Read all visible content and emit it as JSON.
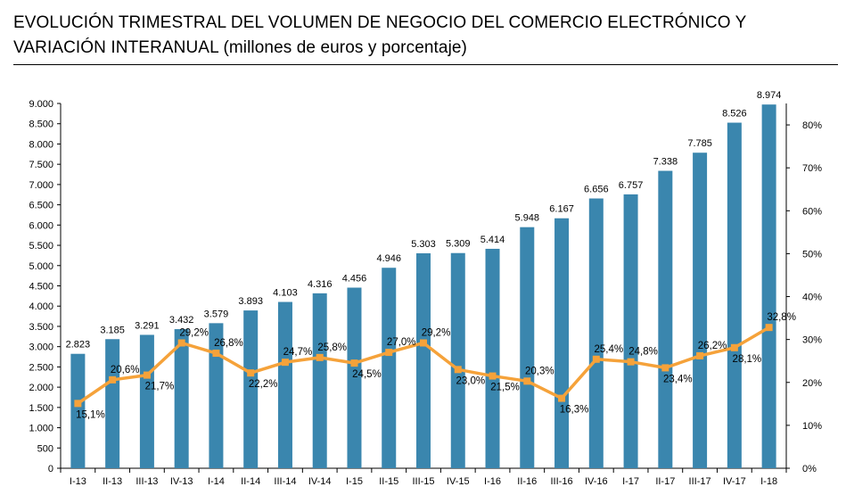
{
  "header": {
    "title_line1": "EVOLUCIÓN TRIMESTRAL DEL VOLUMEN DE NEGOCIO DEL COMERCIO ELECTRÓNICO Y",
    "title_line2_main": "VARIACIÓN INTERANUAL",
    "title_line2_units": "(millones de euros y porcentaje)"
  },
  "chart_data": {
    "type": "bar",
    "title": "EVOLUCIÓN TRIMESTRAL DEL VOLUMEN DE NEGOCIO DEL COMERCIO ELECTRÓNICO Y VARIACIÓN INTERANUAL (millones de euros y porcentaje)",
    "categories": [
      "I-13",
      "II-13",
      "III-13",
      "IV-13",
      "I-14",
      "II-14",
      "III-14",
      "IV-14",
      "I-15",
      "II-15",
      "III-15",
      "IV-15",
      "I-16",
      "II-16",
      "III-16",
      "IV-16",
      "I-17",
      "II-17",
      "III-17",
      "IV-17",
      "I-18"
    ],
    "series": [
      {
        "type": "bar",
        "axis": "left",
        "color": "#3A86AE",
        "values": [
          2823,
          3185,
          3291,
          3432,
          3579,
          3893,
          4103,
          4316,
          4456,
          4946,
          5303,
          5309,
          5414,
          5948,
          6167,
          6656,
          6757,
          7338,
          7785,
          8526,
          8974
        ],
        "labels": [
          "2.823",
          "3.185",
          "3.291",
          "3.432",
          "3.579",
          "3.893",
          "4.103",
          "4.316",
          "4.456",
          "4.946",
          "5.303",
          "5.309",
          "5.414",
          "5.948",
          "6.167",
          "6.656",
          "6.757",
          "7.338",
          "7.785",
          "8.526",
          "8.974"
        ]
      },
      {
        "type": "line",
        "axis": "right",
        "color": "#F5A23A",
        "values": [
          15.1,
          20.6,
          21.7,
          29.2,
          26.8,
          22.2,
          24.7,
          25.8,
          24.5,
          27.0,
          29.2,
          23.0,
          21.5,
          20.3,
          16.3,
          25.4,
          24.8,
          23.4,
          26.2,
          28.1,
          32.8
        ],
        "labels": [
          "15,1%",
          "20,6%",
          "21,7%",
          "29,2%",
          "26,8%",
          "22,2%",
          "24,7%",
          "25,8%",
          "24,5%",
          "27,0%",
          "29,2%",
          "23,0%",
          "21,5%",
          "20,3%",
          "16,3%",
          "25,4%",
          "24,8%",
          "23,4%",
          "26,2%",
          "28,1%",
          "32,8%"
        ]
      }
    ],
    "y_left": {
      "lim": [
        0,
        9000
      ],
      "ticks": [
        0,
        500,
        1000,
        1500,
        2000,
        2500,
        3000,
        3500,
        4000,
        4500,
        5000,
        5500,
        6000,
        6500,
        7000,
        7500,
        8000,
        8500,
        9000
      ],
      "tick_labels": [
        "0",
        "500",
        "1.000",
        "1.500",
        "2.000",
        "2.500",
        "3.000",
        "3.500",
        "4.000",
        "4.500",
        "5.000",
        "5.500",
        "6.000",
        "6.500",
        "7.000",
        "7.500",
        "8.000",
        "8.500",
        "9.000"
      ]
    },
    "y_right": {
      "lim": [
        0,
        85
      ],
      "ticks": [
        0,
        10,
        20,
        30,
        40,
        50,
        60,
        70,
        80
      ],
      "tick_labels": [
        "0%",
        "10%",
        "20%",
        "30%",
        "40%",
        "50%",
        "60%",
        "70%",
        "80%"
      ]
    },
    "grid": false,
    "legend": "none"
  }
}
